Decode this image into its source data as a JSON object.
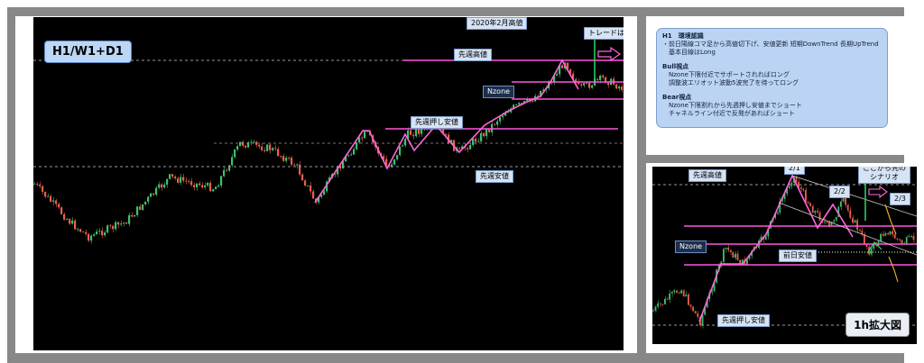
{
  "main": {
    "tf_label": "H1/W1+D1",
    "labels": {
      "feb_high": "2020年2月高値",
      "trade_from": "トレードはここから先",
      "prev_week_high": "先週高値",
      "nzone": "Nzone",
      "prev_week_push_low": "先週押し安値",
      "prev_week_low": "先週安値"
    }
  },
  "analysis": {
    "title": "H1　環境認識",
    "env": [
      "・前日陽線コマ足から高値切下げ、安値更新 短期DownTrend 長期UpTrend",
      "基本目線はLong"
    ],
    "bull_title": "Bull視点",
    "bull": [
      "Nzone下限付近でサポートされればロング",
      "調整波エリオット波動5波完了を待ってロング"
    ],
    "bear_title": "Bear視点",
    "bear": [
      "Nzone下限割れから先週押し安値までショート",
      "チャネルライン付近で反発があればショート"
    ]
  },
  "zoom": {
    "title": "1h拡大図",
    "labels": {
      "prev_week_high": "先週高値",
      "nzone": "Nzone",
      "prev_day_low": "前日安値",
      "prev_week_push_low": "先週押し安値",
      "scenario": "ここから先の\nシナリオ",
      "fib_1": "2/1",
      "fib_2": "2/2",
      "fib_3": "2/3"
    }
  },
  "colors": {
    "bull_candle": "#3fbf6f",
    "bear_candle": "#e8604a",
    "wave_line": "#ff66dd",
    "level_line": "#ff55dd",
    "dashed_line": "#9a9a9a",
    "frame": "#888888",
    "arrow_outline": "#ff66dd"
  }
}
